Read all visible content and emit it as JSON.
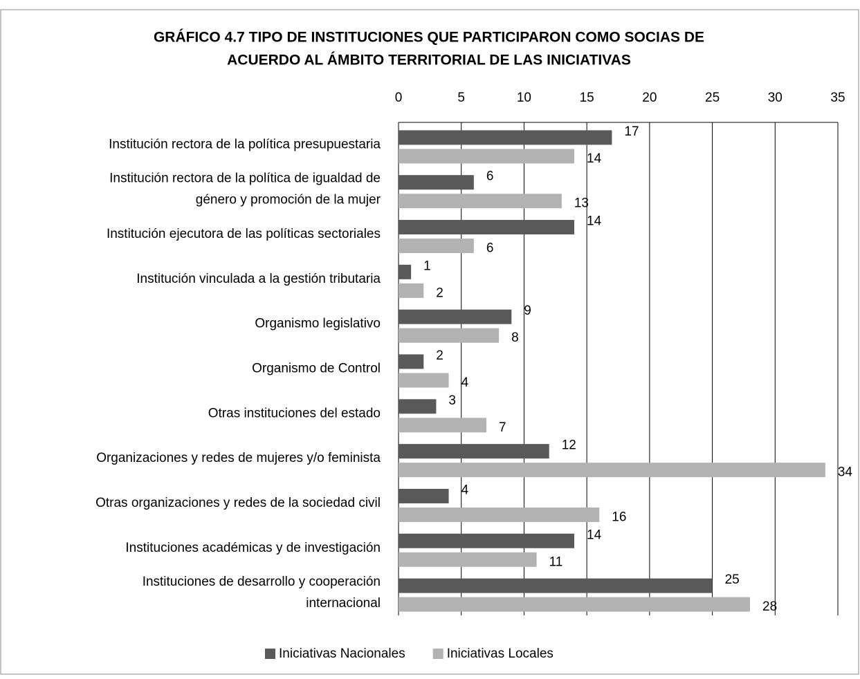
{
  "chart_data": {
    "type": "barh",
    "title": "GRÁFICO 4.7 TIPO DE INSTITUCIONES QUE PARTICIPARON COMO SOCIAS DE ACUERDO AL ÁMBITO TERRITORIAL DE LAS INICIATIVAS",
    "categories": [
      "Institución rectora de la política presupuestaria",
      "Institución rectora de la política de igualdad de género y promoción de la mujer",
      "Institución ejecutora de las políticas sectoriales",
      "Institución vinculada a la gestión tributaria",
      "Organismo legislativo",
      "Organismo de Control",
      "Otras instituciones del estado",
      "Organizaciones y redes de mujeres y/o feminista",
      "Otras organizaciones y redes de la sociedad civil",
      "Instituciones académicas y de investigación",
      "Instituciones de desarrollo y cooperación internacional"
    ],
    "series": [
      {
        "name": "Iniciativas Nacionales",
        "color": "#595959",
        "values": [
          17,
          6,
          14,
          1,
          9,
          2,
          3,
          12,
          4,
          14,
          25
        ]
      },
      {
        "name": "Iniciativas Locales",
        "color": "#b2b2b2",
        "values": [
          14,
          13,
          6,
          2,
          8,
          4,
          7,
          34,
          16,
          11,
          28
        ]
      }
    ],
    "xlim": [
      0,
      35
    ],
    "xticks": [
      0,
      5,
      10,
      15,
      20,
      25,
      30,
      35
    ],
    "grid": true,
    "legend": "bottom"
  }
}
